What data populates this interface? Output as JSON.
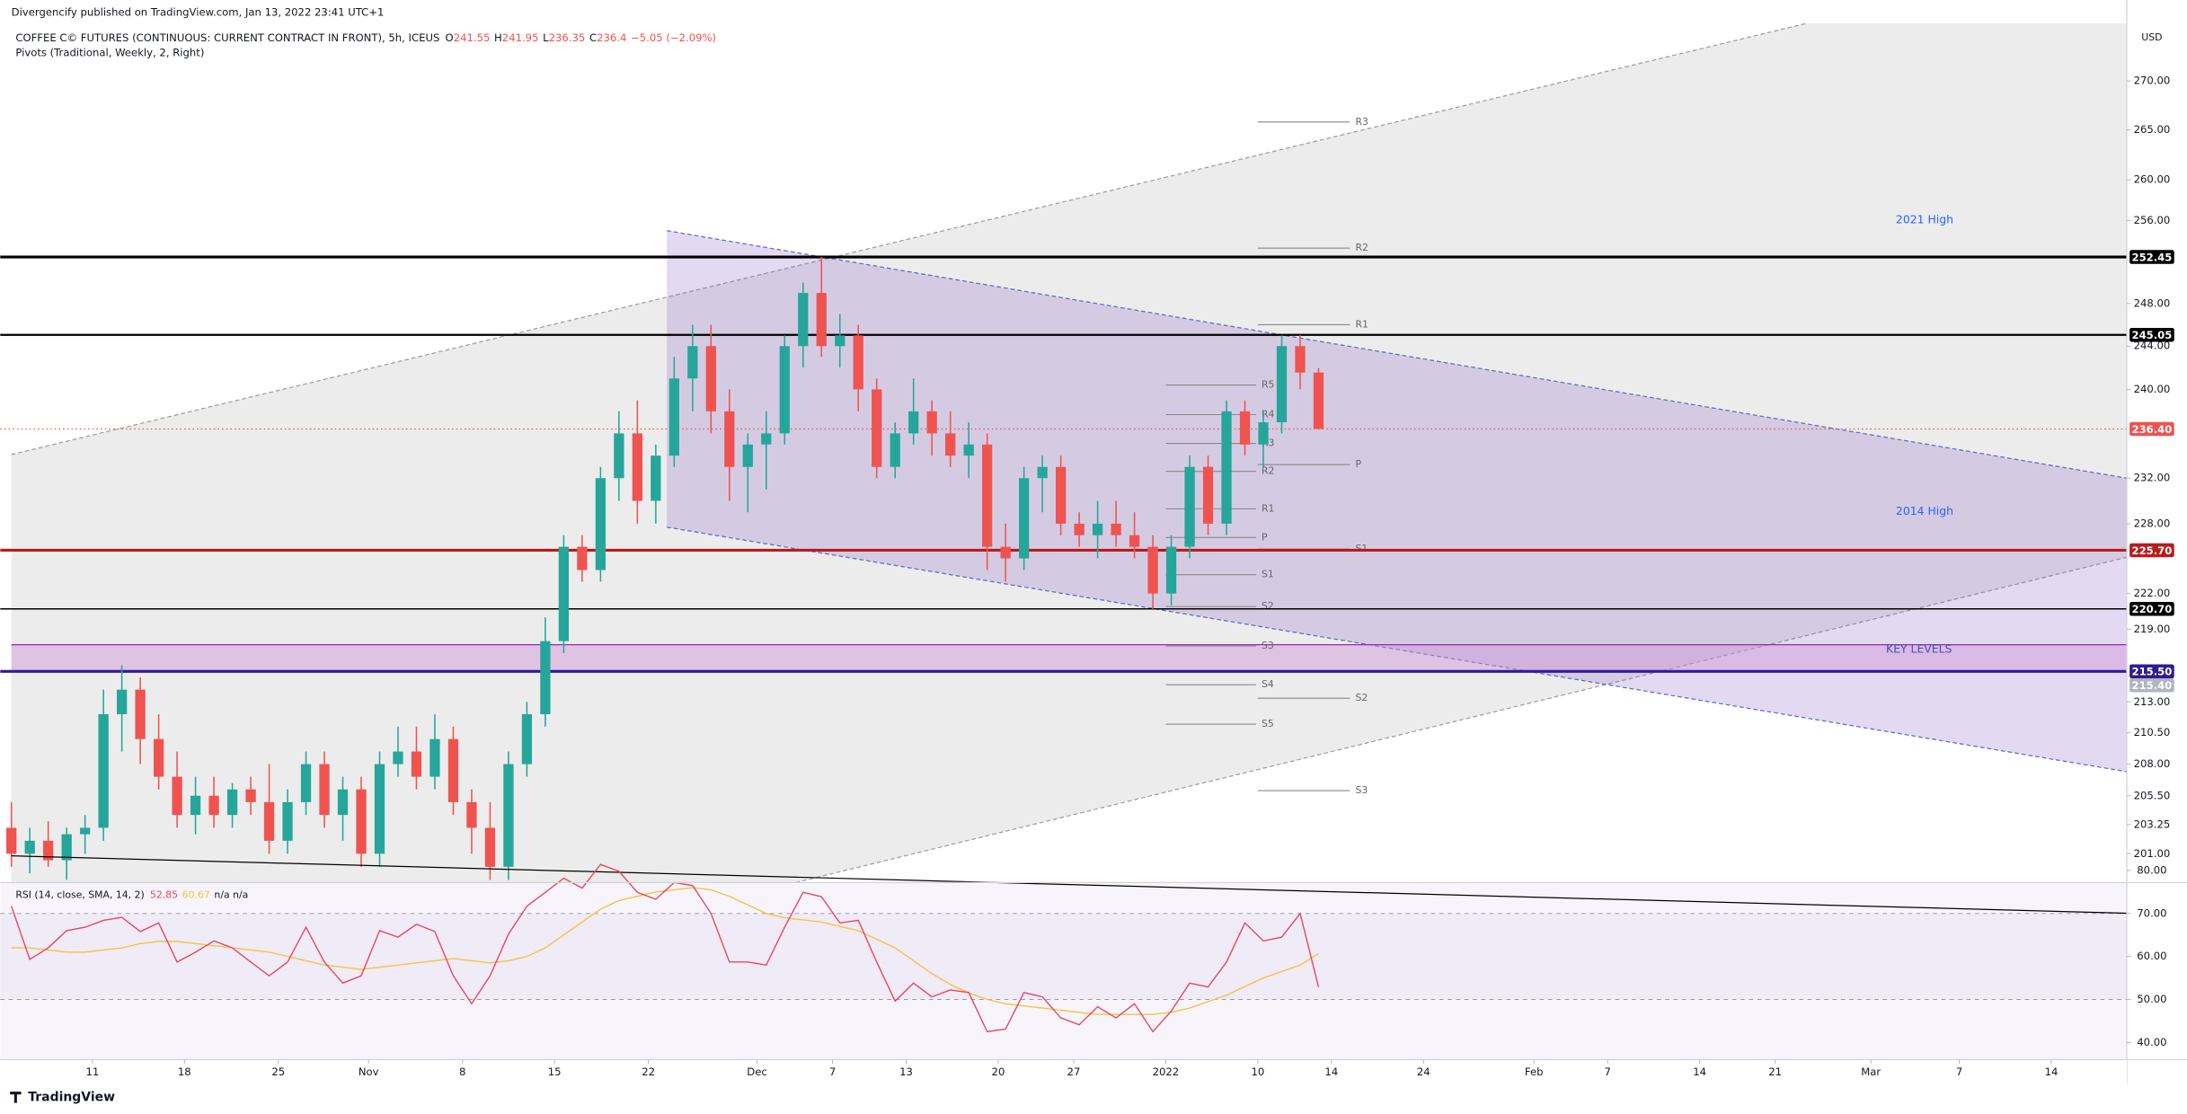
{
  "header": {
    "publisher": "Divergencify published on TradingView.com, Jan 13, 2022 23:41 UTC+1",
    "symbol": "COFFEE C© FUTURES (CONTINUOUS: CURRENT CONTRACT IN FRONT), 5h, ICEUS",
    "ohlc_letters": [
      "O",
      "H",
      "L",
      "C"
    ],
    "change": "−5.05 (−2.09%)",
    "pivots_title": "Pivots (Traditional, Weekly, 2, Right)"
  },
  "chart_data": [
    {
      "type": "candlestick",
      "log_scale": true,
      "currency": "USD",
      "up_color": "#26a69a",
      "down_color": "#ef5350",
      "x": [
        0,
        1,
        2,
        3,
        4,
        5,
        6,
        7,
        8,
        9,
        10,
        11,
        12,
        13,
        14,
        15,
        16,
        17,
        18,
        19,
        20,
        21,
        22,
        23,
        24,
        25,
        26,
        27,
        28,
        29,
        30,
        31,
        32,
        33,
        34,
        35,
        36,
        37,
        38,
        39,
        40,
        41,
        42,
        43,
        44,
        45,
        46,
        47,
        48,
        49,
        50,
        51,
        52,
        53,
        54,
        55,
        56,
        57,
        58,
        59,
        60,
        61,
        62,
        63,
        64,
        65,
        66,
        67,
        68,
        69,
        70,
        71
      ],
      "open": [
        203,
        201,
        202,
        200.5,
        202.5,
        203,
        212,
        214,
        210,
        207,
        204,
        205.5,
        204,
        206,
        205,
        202,
        205,
        208,
        204,
        206,
        201,
        208,
        209,
        207,
        210,
        205,
        203,
        200,
        208,
        212,
        218,
        226,
        224,
        232,
        236,
        230,
        234,
        241,
        244,
        238,
        233,
        235,
        236,
        244,
        249,
        244,
        245,
        240,
        233,
        236,
        238,
        236,
        234,
        235,
        226,
        225,
        232,
        233,
        228,
        227,
        228,
        227,
        226,
        222,
        226,
        233,
        228,
        238,
        235,
        237,
        244,
        241.55
      ],
      "high": [
        205,
        203,
        203.5,
        203,
        204,
        214,
        216,
        215,
        212,
        209,
        207,
        207,
        206.5,
        207,
        208,
        206,
        209,
        209,
        207,
        207,
        209,
        211,
        211,
        212,
        211,
        206,
        205,
        209,
        213,
        220,
        227,
        227,
        233,
        238,
        239,
        235,
        243,
        246,
        246,
        240,
        236,
        238,
        245,
        250,
        252.45,
        247,
        246,
        241,
        237,
        241,
        239,
        238,
        237,
        236,
        228,
        233,
        234,
        234,
        229,
        230,
        230,
        229,
        227,
        227,
        234,
        234,
        239,
        239,
        238,
        245,
        245.05,
        241.95
      ],
      "low": [
        200,
        199.5,
        200,
        199,
        201,
        202,
        209,
        208,
        206,
        203,
        202.5,
        203,
        203,
        204,
        201,
        201,
        204,
        203,
        202,
        200,
        200,
        207,
        206,
        206,
        204,
        201,
        199,
        199,
        207,
        211,
        217,
        223,
        223,
        230,
        228,
        228,
        233,
        238,
        236,
        230,
        229,
        231,
        235,
        242,
        243,
        242,
        238,
        232,
        232,
        235,
        234,
        233,
        232,
        224,
        223,
        224,
        229,
        227,
        226,
        225,
        226,
        225,
        220.7,
        221,
        225,
        227,
        227,
        234,
        233,
        236,
        240,
        236.35
      ],
      "close": [
        201,
        202,
        200.5,
        202.5,
        203,
        212,
        214,
        210,
        207,
        204,
        205.5,
        204,
        206,
        205,
        202,
        205,
        208,
        204,
        206,
        201,
        208,
        209,
        207,
        210,
        205,
        203,
        200,
        208,
        212,
        218,
        226,
        224,
        232,
        236,
        230,
        234,
        241,
        244,
        238,
        233,
        235,
        236,
        244,
        249,
        244,
        245,
        240,
        233,
        236,
        238,
        236,
        234,
        235,
        226,
        225,
        232,
        233,
        228,
        227,
        228,
        227,
        226,
        222,
        226,
        233,
        228,
        238,
        235,
        237,
        244,
        241.55,
        236.4
      ],
      "xlim": [
        0,
        114.9
      ],
      "xticks": [
        {
          "value": 4.4,
          "label": "11"
        },
        {
          "value": 9.4,
          "label": "18"
        },
        {
          "value": 14.5,
          "label": "25"
        },
        {
          "value": 19.4,
          "label": "Nov"
        },
        {
          "value": 24.5,
          "label": "8"
        },
        {
          "value": 29.5,
          "label": "15"
        },
        {
          "value": 34.6,
          "label": "22"
        },
        {
          "value": 40.5,
          "label": "Dec"
        },
        {
          "value": 44.6,
          "label": "7"
        },
        {
          "value": 48.6,
          "label": "13"
        },
        {
          "value": 53.6,
          "label": "20"
        },
        {
          "value": 57.7,
          "label": "27"
        },
        {
          "value": 62.7,
          "label": "2022"
        },
        {
          "value": 67.7,
          "label": "10"
        },
        {
          "value": 71.7,
          "label": "14"
        },
        {
          "value": 76.7,
          "label": "24"
        },
        {
          "value": 82.7,
          "label": "Feb"
        },
        {
          "value": 86.7,
          "label": "7"
        },
        {
          "value": 91.7,
          "label": "14"
        },
        {
          "value": 95.8,
          "label": "21"
        },
        {
          "value": 101,
          "label": "Mar"
        },
        {
          "value": 105.8,
          "label": "7"
        },
        {
          "value": 110.8,
          "label": "14"
        }
      ],
      "ylim": [
        198.8,
        277.0
      ],
      "yticks": [
        {
          "value": 270,
          "label": "270.00"
        },
        {
          "value": 265,
          "label": "265.00"
        },
        {
          "value": 260,
          "label": "260.00"
        },
        {
          "value": 256,
          "label": "256.00"
        },
        {
          "value": 248,
          "label": "248.00"
        },
        {
          "value": 244,
          "label": "244.00"
        },
        {
          "value": 240,
          "label": "240.00"
        },
        {
          "value": 232,
          "label": "232.00"
        },
        {
          "value": 228,
          "label": "228.00"
        },
        {
          "value": 222,
          "label": "222.00"
        },
        {
          "value": 219,
          "label": "219.00"
        },
        {
          "value": 213,
          "label": "213.00"
        },
        {
          "value": 210.5,
          "label": "210.50"
        },
        {
          "value": 208,
          "label": "208.00"
        },
        {
          "value": 205.5,
          "label": "205.50"
        },
        {
          "value": 203.25,
          "label": "203.25"
        },
        {
          "value": 201,
          "label": "201.00"
        }
      ],
      "levels": [
        {
          "price": 252.45,
          "color": "#000000",
          "width": 2,
          "dash": false
        },
        {
          "price": 245.05,
          "color": "#000000",
          "width": 1.5,
          "dash": false
        },
        {
          "price": {
            "value": 236.4,
            "label": "236.40"
          },
          "color": "#ef5350",
          "width": 0.8,
          "dash": true
        },
        {
          "price": {
            "value": 225.7,
            "label": "225.70"
          },
          "color": "#b71c1c",
          "width": 2,
          "dash": false
        },
        {
          "price": {
            "value": 220.7,
            "label": "220.70"
          },
          "color": "#000000",
          "width": 1,
          "dash": false
        },
        {
          "price": {
            "value": 215.5,
            "label": "215.50"
          },
          "color": "#311b92",
          "width": 2,
          "dash": false
        },
        {
          "price": {
            "value": 215.4,
            "label": "215.40"
          },
          "color": "#b2b5be",
          "width": 0,
          "dash": false
        }
      ],
      "key_zone": {
        "top": 217.7,
        "bottom": 215.5,
        "color": "#ce93d8"
      },
      "gray_channel": {
        "upper_x": [
          0,
          97.5
        ],
        "upper_y": [
          234.1,
          276.0
        ],
        "lower_x": [
          42.6,
          114.9
        ],
        "lower_y": [
          198.8,
          225.1
        ],
        "color": "#9e9e9e"
      },
      "purple_channel": {
        "top_x": [
          35.6,
          114.9
        ],
        "top_y": [
          255.0,
          232.0
        ],
        "bottom_x": [
          35.6,
          114.9
        ],
        "bottom_y": [
          227.7,
          207.4
        ],
        "color": "#5c6bc0"
      },
      "pivots": [
        {
          "x_range": [
            62.7,
            67.6
          ],
          "levels": [
            {
              "name": "R5",
              "value": 240.4
            },
            {
              "name": "R4",
              "value": 237.7
            },
            {
              "name": "R3",
              "value": 235.1
            },
            {
              "name": "R2",
              "value": 232.6
            },
            {
              "name": "R1",
              "value": 229.3
            },
            {
              "name": "P",
              "value": 226.8
            },
            {
              "name": "S1",
              "value": 223.6
            },
            {
              "name": "S2",
              "value": 220.9
            },
            {
              "name": "S3",
              "value": 217.6
            },
            {
              "name": "S4",
              "value": 214.4
            },
            {
              "name": "S5",
              "value": 211.2
            }
          ]
        },
        {
          "x_range": [
            67.7,
            72.7
          ],
          "levels": [
            {
              "name": "R3",
              "value": 265.8
            },
            {
              "name": "R2",
              "value": 253.3
            },
            {
              "name": "R1",
              "value": 246.0
            },
            {
              "name": "P",
              "value": 233.2
            },
            {
              "name": "S1",
              "value": 225.8
            },
            {
              "name": "S2",
              "value": 213.3
            },
            {
              "name": "S3",
              "value": 205.9
            }
          ]
        }
      ],
      "annotations": [
        "2021 High",
        "2014 High",
        "KEY LEVELS"
      ]
    },
    {
      "type": "line",
      "title": "RSI (14, close, SMA, 14, 2)",
      "extra": "n/a n/a",
      "x": [
        0,
        1,
        2,
        3,
        4,
        5,
        6,
        7,
        8,
        9,
        10,
        11,
        12,
        13,
        14,
        15,
        16,
        17,
        18,
        19,
        20,
        21,
        22,
        23,
        24,
        25,
        26,
        27,
        28,
        29,
        30,
        31,
        32,
        33,
        34,
        35,
        36,
        37,
        38,
        39,
        40,
        41,
        42,
        43,
        44,
        45,
        46,
        47,
        48,
        49,
        50,
        51,
        52,
        53,
        54,
        55,
        56,
        57,
        58,
        59,
        60,
        61,
        62,
        63,
        64,
        65,
        66,
        67,
        68,
        69,
        70,
        71
      ],
      "series": [
        {
          "color": "#e8475f",
          "values": [
            71.7,
            59.3,
            62,
            66,
            66.8,
            68.4,
            69.1,
            65.8,
            67.8,
            58.7,
            61,
            63.6,
            62,
            58.7,
            55.5,
            58.7,
            66.8,
            58.7,
            53.8,
            55.5,
            66,
            64.5,
            67.5,
            65.8,
            55.5,
            49,
            55.5,
            65.2,
            71.7,
            74.9,
            78.2,
            75.9,
            81.4,
            79.8,
            74.9,
            73.3,
            77.2,
            76.5,
            70,
            58.7,
            58.7,
            58,
            66.8,
            74.9,
            73.9,
            67.8,
            68.4,
            58.7,
            49.6,
            53.8,
            50.6,
            52.2,
            51.6,
            42.5,
            43.1,
            51.6,
            50.6,
            45.7,
            44.1,
            48.3,
            45.7,
            49,
            42.5,
            47.3,
            53.8,
            52.9,
            58.7,
            67.8,
            63.6,
            64.5,
            70,
            52.85
          ]
        },
        {
          "color": "#f5c342",
          "values": [
            62,
            62,
            61.5,
            61,
            61,
            61.5,
            62,
            63,
            63.5,
            63.5,
            63,
            62.5,
            62,
            61.5,
            61,
            60,
            59,
            58,
            57.5,
            57,
            57.5,
            58,
            58.5,
            59,
            59.5,
            59,
            58.5,
            59,
            60,
            62,
            65,
            68,
            71,
            73,
            74,
            75,
            75.5,
            76,
            75.5,
            74,
            72,
            70,
            69,
            68.5,
            68,
            67,
            66,
            64,
            62,
            59,
            56,
            53.5,
            51.5,
            50,
            49,
            48.5,
            48,
            47.5,
            47,
            46.5,
            46.5,
            46.5,
            46.5,
            47,
            48,
            49.5,
            51,
            53,
            55,
            56.5,
            58,
            60.67
          ]
        }
      ],
      "trendline": {
        "x": [
          0,
          114.9
        ],
        "y": [
          83.4,
          70.05
        ]
      },
      "bands": [
        70,
        50
      ],
      "xlim": [
        0,
        114.9
      ],
      "ylim": [
        36,
        84
      ],
      "yticks": [
        {
          "value": 80,
          "label": "80.00"
        },
        {
          "value": 70,
          "label": "70.00"
        },
        {
          "value": 60,
          "label": "60.00"
        },
        {
          "value": 50,
          "label": "50.00"
        },
        {
          "value": 40,
          "label": "40.00"
        }
      ]
    }
  ],
  "footer": {
    "logo": "TradingView"
  }
}
